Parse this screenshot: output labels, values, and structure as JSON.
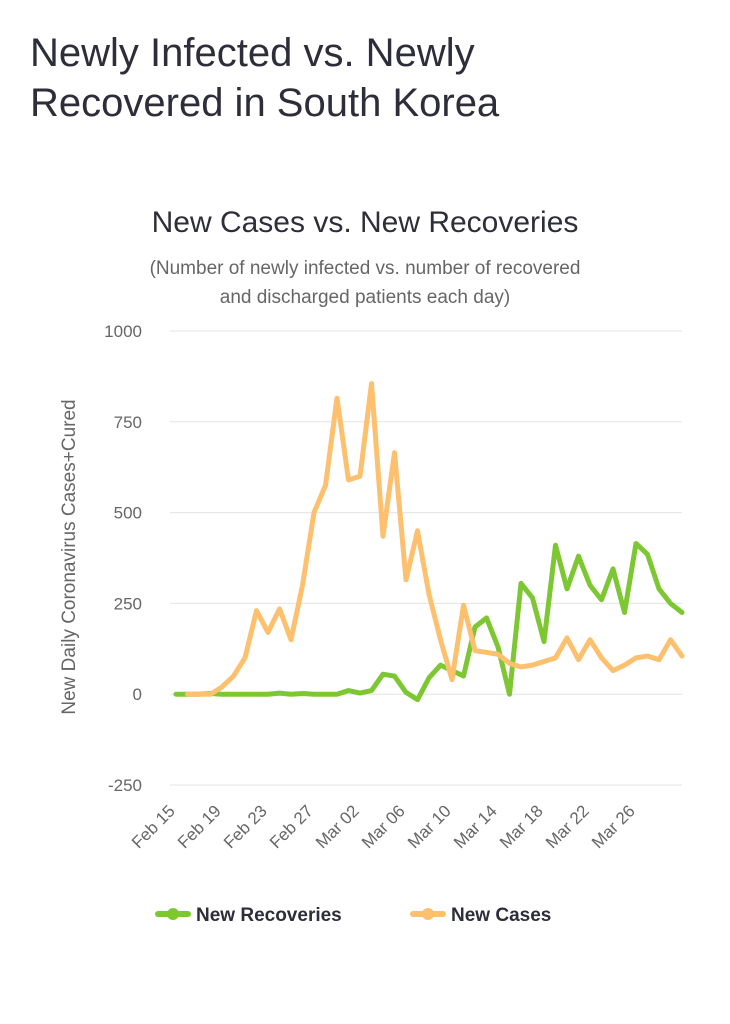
{
  "page_title": "Newly Infected vs. Newly Recovered in South Korea",
  "chart_data": {
    "type": "line",
    "title": "New Cases vs. New Recoveries",
    "subtitle": [
      "(Number of newly infected vs. number of recovered",
      "and discharged patients each day)"
    ],
    "y_label": "New Daily Coronavirus Cases+Cured",
    "categories": [
      "Feb 15",
      null,
      null,
      null,
      "Feb 19",
      null,
      null,
      null,
      "Feb 23",
      null,
      null,
      null,
      "Feb 27",
      null,
      null,
      null,
      "Mar 02",
      null,
      null,
      null,
      "Mar 06",
      null,
      null,
      null,
      "Mar 10",
      null,
      null,
      null,
      "Mar 14",
      null,
      null,
      null,
      "Mar 18",
      null,
      null,
      null,
      "Mar 22",
      null,
      null,
      null,
      "Mar 26",
      null,
      null,
      null,
      null
    ],
    "ylim": [
      -250,
      1000
    ],
    "yticks": [
      -250,
      0,
      250,
      500,
      750,
      1000
    ],
    "grid": true,
    "legend": "bottom",
    "series": [
      {
        "name": "New Recoveries",
        "color": "#7dc733",
        "values": [
          0,
          0,
          0,
          2,
          0,
          0,
          0,
          0,
          0,
          3,
          0,
          2,
          0,
          0,
          0,
          10,
          3,
          10,
          55,
          50,
          5,
          -15,
          45,
          80,
          65,
          50,
          185,
          210,
          130,
          0,
          305,
          265,
          145,
          410,
          290,
          380,
          300,
          260,
          345,
          225,
          415,
          385,
          290,
          250,
          225
        ]
      },
      {
        "name": "New Cases",
        "color": "#fdc06e",
        "values": [
          null,
          0,
          0,
          0,
          20,
          50,
          100,
          230,
          170,
          235,
          150,
          300,
          500,
          575,
          815,
          590,
          600,
          855,
          435,
          665,
          315,
          450,
          275,
          150,
          40,
          245,
          120,
          115,
          110,
          85,
          75,
          80,
          90,
          100,
          155,
          95,
          150,
          100,
          65,
          80,
          100,
          105,
          95,
          150,
          105
        ]
      }
    ]
  }
}
